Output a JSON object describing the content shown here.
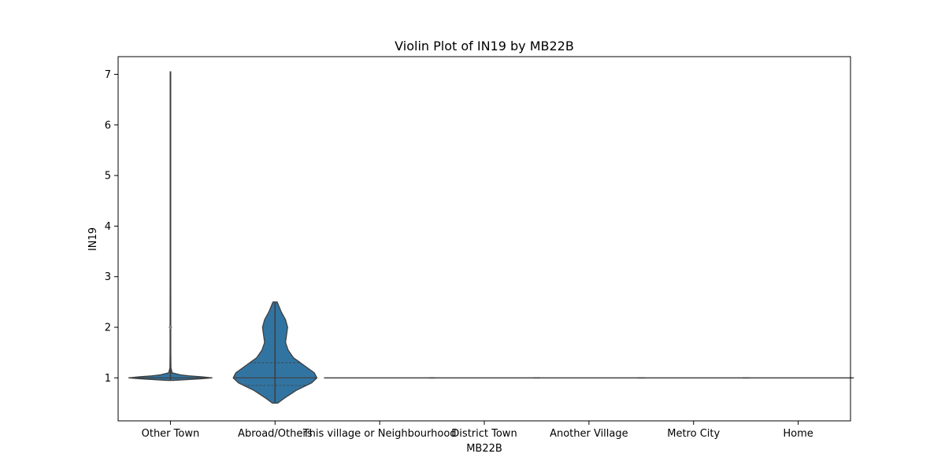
{
  "chart_data": {
    "type": "violin",
    "title": "Violin Plot of IN19 by MB22B",
    "xlabel": "MB22B",
    "ylabel": "IN19",
    "categories": [
      "Other Town",
      "Abroad/Others",
      "This village or Neighbourhood",
      "District Town",
      "Another Village",
      "Metro City",
      "Home"
    ],
    "yticks": [
      1,
      2,
      3,
      4,
      5,
      6,
      7
    ],
    "ylim": [
      0.15,
      7.35
    ],
    "grid": false,
    "legend": "none",
    "fill_color": "#3274a1",
    "line_color": "#3f3f3f",
    "violins": [
      {
        "category": "Other Town",
        "min": 0.95,
        "max": 7.05,
        "median": 1.0,
        "q1": 1.0,
        "q3": 1.0,
        "outliers": [
          2.0
        ],
        "profile": [
          [
            0.95,
            0.03
          ],
          [
            0.98,
            0.35
          ],
          [
            1.0,
            0.5
          ],
          [
            1.02,
            0.38
          ],
          [
            1.04,
            0.22
          ],
          [
            1.06,
            0.12
          ],
          [
            1.1,
            0.02
          ],
          [
            1.2,
            0.006
          ],
          [
            1.5,
            0.004
          ],
          [
            2.0,
            0.004
          ],
          [
            3.0,
            0.003
          ],
          [
            7.05,
            0.003
          ]
        ]
      },
      {
        "category": "Abroad/Others",
        "min": 0.5,
        "max": 2.5,
        "median": 1.0,
        "q1": 0.85,
        "q3": 1.3,
        "outliers": [],
        "profile": [
          [
            0.5,
            0.005
          ],
          [
            0.6,
            0.018
          ],
          [
            0.75,
            0.04
          ],
          [
            0.9,
            0.07
          ],
          [
            1.0,
            0.08
          ],
          [
            1.1,
            0.075
          ],
          [
            1.25,
            0.055
          ],
          [
            1.4,
            0.035
          ],
          [
            1.55,
            0.025
          ],
          [
            1.7,
            0.02
          ],
          [
            1.85,
            0.022
          ],
          [
            2.0,
            0.024
          ],
          [
            2.15,
            0.02
          ],
          [
            2.3,
            0.012
          ],
          [
            2.5,
            0.004
          ]
        ]
      },
      {
        "category": "This village or Neighbourhood",
        "value": 1.0
      },
      {
        "category": "District Town",
        "value": 1.0
      },
      {
        "category": "Another Village",
        "value": 1.0
      },
      {
        "category": "Metro City",
        "value": 1.0
      },
      {
        "category": "Home",
        "value": 1.0
      }
    ]
  }
}
